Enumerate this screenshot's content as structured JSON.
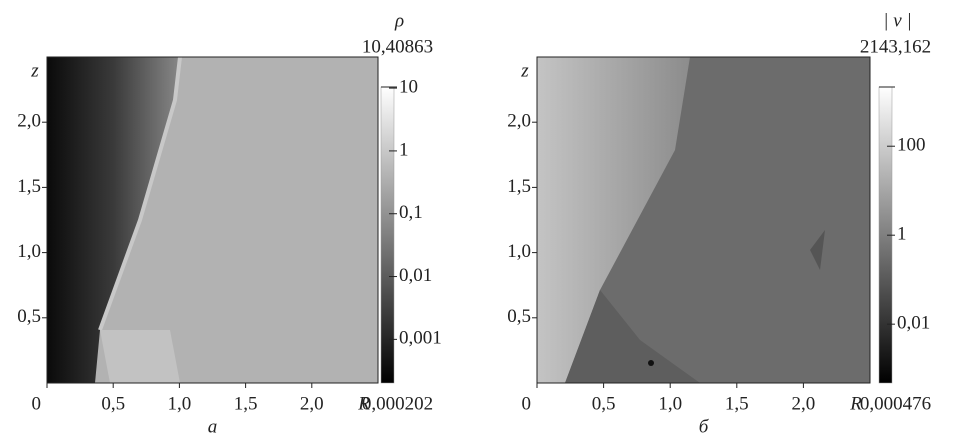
{
  "chart_data": [
    {
      "type": "heatmap",
      "caption": "а",
      "xlabel": "R",
      "ylabel": "z",
      "xlim": [
        0,
        2.5
      ],
      "ylim": [
        0,
        2.5
      ],
      "xticks": [
        0,
        {
          "value": 0.5,
          "label": "0,5"
        },
        {
          "value": 1.0,
          "label": "1,0"
        },
        {
          "value": 1.5,
          "label": "1,5"
        },
        {
          "value": 2.0,
          "label": "2,0"
        }
      ],
      "yticks": [
        {
          "value": 0.5,
          "label": "0,5"
        },
        {
          "value": 1.0,
          "label": "1,0"
        },
        {
          "value": 1.5,
          "label": "1,5"
        },
        {
          "value": 2.0,
          "label": "2,0"
        }
      ],
      "colorbar_title": "ρ",
      "colorbar_log": true,
      "clim": [
        {
          "value": 0.000202,
          "label": "0,000202"
        },
        {
          "value": 10.40863,
          "label": "10,40863"
        }
      ],
      "cticks": [
        {
          "value": 0.001,
          "label": "0,001"
        },
        {
          "value": 0.01,
          "label": "0,01"
        },
        {
          "value": 0.1,
          "label": "0,1"
        },
        1,
        10
      ]
    },
    {
      "type": "heatmap",
      "caption": "б",
      "xlabel": "R",
      "ylabel": "z",
      "xlim": [
        0,
        2.5
      ],
      "ylim": [
        0,
        2.5
      ],
      "xticks": [
        0,
        {
          "value": 0.5,
          "label": "0,5"
        },
        {
          "value": 1.0,
          "label": "1,0"
        },
        {
          "value": 1.5,
          "label": "1,5"
        },
        {
          "value": 2.0,
          "label": "2,0"
        }
      ],
      "yticks": [
        {
          "value": 0.5,
          "label": "0,5"
        },
        {
          "value": 1.0,
          "label": "1,0"
        },
        {
          "value": 1.5,
          "label": "1,5"
        },
        {
          "value": 2.0,
          "label": "2,0"
        }
      ],
      "colorbar_title": "| v |",
      "colorbar_log": true,
      "clim": [
        {
          "value": 0.000476,
          "label": "0,000476"
        },
        {
          "value": 2143.162,
          "label": "2143,162"
        }
      ],
      "cticks": [
        {
          "value": 0.01,
          "label": "0,01"
        },
        1,
        100
      ]
    }
  ]
}
